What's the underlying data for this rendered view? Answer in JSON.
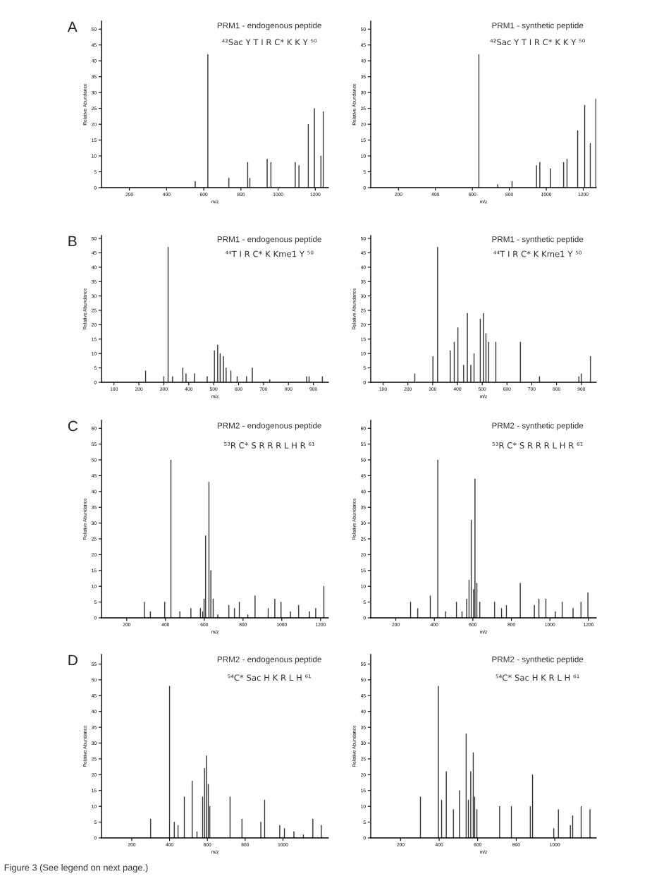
{
  "chart_data": [
    {
      "type": "bar",
      "title": "PRM1 - endogenous peptide",
      "subtitle": "⁴²Sac Y T I R C* K K Y ⁵⁰",
      "xlabel": "m/z",
      "ylabel": "Relative Abundance",
      "annotations": [
        "A"
      ],
      "color": "#1a1a1a",
      "x": [
        554,
        622,
        735,
        836,
        848,
        941,
        961,
        1092,
        1112,
        1162,
        1195,
        1230,
        1243
      ],
      "values": [
        2,
        42,
        3,
        8,
        3,
        9,
        8,
        8,
        7,
        20,
        25,
        10,
        24
      ],
      "xlim": [
        50,
        1270
      ],
      "xticks": [
        200,
        400,
        600,
        800,
        1000,
        1200
      ],
      "ylim": [
        0,
        52.5
      ],
      "yticks": [
        0,
        5,
        10,
        15,
        20,
        25,
        30,
        35,
        40,
        45,
        50
      ]
    },
    {
      "type": "bar",
      "title": "PRM1 - synthetic peptide",
      "subtitle": "⁴²Sac Y T I R C* K K Y ⁵⁰",
      "xlabel": "m/z",
      "ylabel": "Relative Abundance",
      "color": "#1a1a1a",
      "x": [
        635,
        737,
        815,
        947,
        965,
        1023,
        1094,
        1112,
        1170,
        1208,
        1238,
        1268
      ],
      "values": [
        42,
        1,
        2,
        7,
        8,
        6,
        8,
        9,
        18,
        26,
        14,
        28
      ],
      "xlim": [
        50,
        1270
      ],
      "xticks": [
        200,
        400,
        600,
        800,
        1000,
        1200
      ],
      "ylim": [
        0,
        52.5
      ],
      "yticks": [
        0,
        5,
        10,
        15,
        20,
        25,
        30,
        35,
        40,
        45,
        50
      ]
    },
    {
      "type": "bar",
      "title": "PRM1 - endogenous peptide",
      "subtitle": "⁴⁴T I R C* K Kme1 Y ⁵⁰",
      "xlabel": "m/z",
      "ylabel": "Relative Abundance",
      "annotations": [
        "B"
      ],
      "color": "#1a1a1a",
      "x": [
        227,
        300,
        317,
        335,
        376,
        389,
        423,
        474,
        503,
        516,
        526,
        539,
        550,
        569,
        594,
        632,
        655,
        725,
        873,
        883,
        936
      ],
      "values": [
        4,
        2,
        47,
        2,
        5,
        3,
        3,
        2,
        11,
        13,
        10,
        9,
        5,
        4,
        2,
        2,
        5,
        1,
        2,
        2,
        2
      ],
      "xlim": [
        50,
        960
      ],
      "xticks": [
        100,
        200,
        300,
        400,
        500,
        600,
        700,
        800,
        900
      ],
      "ylim": [
        0,
        51
      ],
      "yticks": [
        0,
        5,
        10,
        15,
        20,
        25,
        30,
        35,
        40,
        45,
        50
      ]
    },
    {
      "type": "bar",
      "title": "PRM1 - synthetic peptide",
      "subtitle": "⁴⁴T I R C* K Kme1 Y ⁵⁰",
      "xlabel": "m/z",
      "ylabel": "Relative Abundance",
      "color": "#1a1a1a",
      "x": [
        228,
        301,
        320,
        371,
        387,
        402,
        425,
        440,
        454,
        467,
        492,
        505,
        515,
        526,
        555,
        654,
        731,
        890,
        900,
        937
      ],
      "values": [
        3,
        9,
        47,
        11,
        14,
        19,
        6,
        24,
        6,
        10,
        22,
        24,
        17,
        14,
        14,
        14,
        2,
        2,
        3,
        9
      ],
      "xlim": [
        50,
        960
      ],
      "xticks": [
        100,
        200,
        300,
        400,
        500,
        600,
        700,
        800,
        900
      ],
      "ylim": [
        0,
        51
      ],
      "yticks": [
        0,
        5,
        10,
        15,
        20,
        25,
        30,
        35,
        40,
        45,
        50
      ]
    },
    {
      "type": "bar",
      "title": "PRM2 - endogenous peptide",
      "subtitle": "⁵³R C* S R R R L H R ⁶¹",
      "xlabel": "m/z",
      "ylabel": "Relative Abundance",
      "annotations": [
        "C"
      ],
      "color": "#1a1a1a",
      "x": [
        291,
        322,
        396,
        428,
        474,
        531,
        580,
        592,
        599,
        607,
        624,
        634,
        646,
        670,
        727,
        756,
        781,
        825,
        862,
        930,
        964,
        996,
        1045,
        1087,
        1143,
        1175,
        1217
      ],
      "values": [
        5,
        2,
        5,
        50,
        2,
        3,
        3,
        2,
        6,
        26,
        43,
        15,
        6,
        1,
        4,
        3,
        5,
        1,
        7,
        3,
        6,
        5,
        2,
        4,
        2,
        3,
        10
      ],
      "xlim": [
        70,
        1240
      ],
      "xticks": [
        200,
        400,
        600,
        800,
        1000,
        1200
      ],
      "ylim": [
        0,
        62.5
      ],
      "yticks": [
        0,
        5,
        10,
        15,
        20,
        25,
        30,
        35,
        40,
        45,
        50,
        55,
        60
      ]
    },
    {
      "type": "bar",
      "title": "PRM2 - synthetic peptide",
      "subtitle": "⁵³R C* S R R R L H R ⁶¹",
      "xlabel": "m/z",
      "ylabel": "Relative Abundance",
      "color": "#1a1a1a",
      "x": [
        277,
        314,
        379,
        418,
        459,
        515,
        544,
        568,
        580,
        592,
        604,
        611,
        621,
        636,
        713,
        749,
        774,
        846,
        919,
        943,
        979,
        1028,
        1064,
        1120,
        1161,
        1197
      ],
      "values": [
        5,
        3,
        7,
        50,
        2,
        5,
        2,
        6,
        12,
        31,
        9,
        44,
        11,
        5,
        5,
        3,
        4,
        11,
        4,
        6,
        6,
        2,
        5,
        3,
        5,
        8
      ],
      "xlim": [
        70,
        1240
      ],
      "xticks": [
        200,
        400,
        600,
        800,
        1000,
        1200
      ],
      "ylim": [
        0,
        62.5
      ],
      "yticks": [
        0,
        5,
        10,
        15,
        20,
        25,
        30,
        35,
        40,
        45,
        50,
        55,
        60
      ]
    },
    {
      "type": "bar",
      "title": "PRM2 - endogenous peptide",
      "subtitle": "⁵⁴C* Sac H K R L H ⁶¹",
      "xlabel": "m/z",
      "ylabel": "Relative Abundance",
      "annotations": [
        "D",
        "Figure 3 (See legend on next page.)"
      ],
      "color": "#1a1a1a",
      "x": [
        300,
        400,
        425,
        445,
        478,
        520,
        545,
        575,
        585,
        595,
        605,
        613,
        720,
        783,
        883,
        903,
        983,
        1008,
        1058,
        1108,
        1158,
        1203
      ],
      "values": [
        6,
        48,
        5,
        4,
        13,
        18,
        2,
        13,
        22,
        26,
        17,
        10,
        13,
        6,
        5,
        12,
        4,
        3,
        2,
        1,
        6,
        4
      ],
      "xlim": [
        40,
        1240
      ],
      "xticks": [
        200,
        400,
        600,
        800,
        1000
      ],
      "ylim": [
        0,
        58
      ],
      "yticks": [
        0,
        5,
        10,
        15,
        20,
        25,
        30,
        35,
        40,
        45,
        50,
        55
      ]
    },
    {
      "type": "bar",
      "title": "PRM2 - synthetic peptide",
      "subtitle": "⁵⁴C* Sac H K R L H ⁶¹",
      "xlabel": "m/z",
      "ylabel": "Relative Abundance",
      "color": "#1a1a1a",
      "x": [
        303,
        396,
        413,
        437,
        474,
        506,
        540,
        552,
        564,
        577,
        584,
        596,
        714,
        775,
        873,
        885,
        995,
        1019,
        1081,
        1093,
        1137,
        1183
      ],
      "values": [
        13,
        48,
        12,
        21,
        9,
        15,
        33,
        12,
        21,
        27,
        13,
        9,
        10,
        10,
        10,
        20,
        3,
        9,
        4,
        7,
        10,
        9
      ],
      "xlim": [
        45,
        1215
      ],
      "xticks": [
        200,
        400,
        600,
        800,
        1000
      ],
      "ylim": [
        0,
        58
      ],
      "yticks": [
        0,
        5,
        10,
        15,
        20,
        25,
        30,
        35,
        40,
        45,
        50,
        55
      ]
    }
  ]
}
